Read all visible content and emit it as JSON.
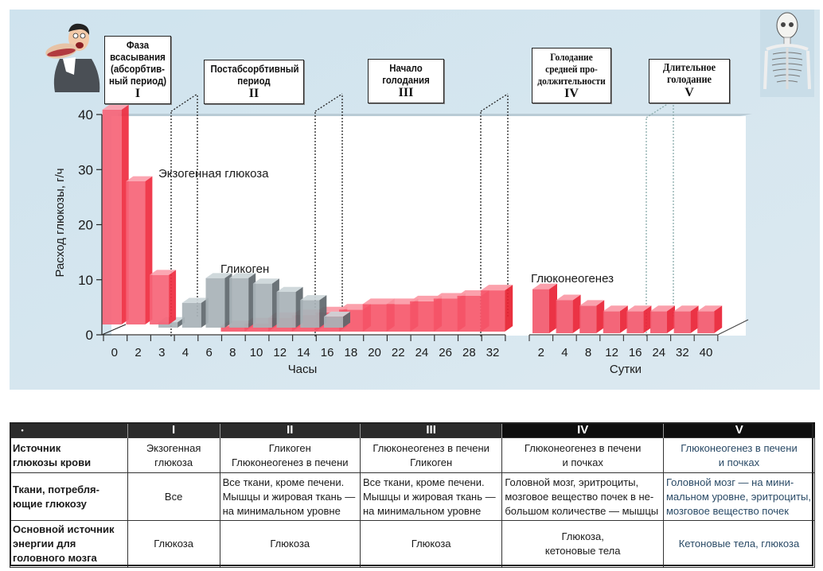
{
  "chart_data": {
    "type": "bar",
    "title": "",
    "ylabel": "Расход глюкозы, г/ч",
    "ylim": [
      0,
      40
    ],
    "yticks": [
      0,
      10,
      20,
      30,
      40
    ],
    "hours_axis": {
      "xlabel": "Часы",
      "categories": [
        "0",
        "2",
        "3",
        "4",
        "6",
        "8",
        "10",
        "12",
        "14",
        "16",
        "18",
        "20",
        "22",
        "24",
        "26",
        "28",
        "32"
      ]
    },
    "days_axis": {
      "xlabel": "Сутки",
      "categories": [
        "2",
        "4",
        "8",
        "12",
        "16",
        "24",
        "32",
        "40"
      ]
    },
    "series": [
      {
        "name": "Экзогенная глюкоза",
        "color": "#f0485e",
        "axis": "hours",
        "points": [
          {
            "x": "2",
            "y": 39
          },
          {
            "x": "3",
            "y": 26
          },
          {
            "x": "4",
            "y": 9
          }
        ]
      },
      {
        "name": "Гликоген",
        "color": "#9aa3a8",
        "axis": "hours",
        "points": [
          {
            "x": "4",
            "y": 1
          },
          {
            "x": "6",
            "y": 4.5
          },
          {
            "x": "8",
            "y": 9
          },
          {
            "x": "10",
            "y": 9
          },
          {
            "x": "12",
            "y": 8
          },
          {
            "x": "14",
            "y": 6.5
          },
          {
            "x": "16",
            "y": 5
          },
          {
            "x": "18",
            "y": 2
          }
        ]
      },
      {
        "name": "Глюконеогенез",
        "color": "#f0485e",
        "axis": "hours",
        "points": [
          {
            "x": "8",
            "y": 1
          },
          {
            "x": "10",
            "y": 1.5
          },
          {
            "x": "12",
            "y": 2.5
          },
          {
            "x": "14",
            "y": 3
          },
          {
            "x": "16",
            "y": 3.5
          },
          {
            "x": "18",
            "y": 4
          },
          {
            "x": "20",
            "y": 5
          },
          {
            "x": "22",
            "y": 5
          },
          {
            "x": "24",
            "y": 5.5
          },
          {
            "x": "26",
            "y": 6
          },
          {
            "x": "28",
            "y": 6.5
          },
          {
            "x": "32",
            "y": 7.5
          }
        ]
      },
      {
        "name": "Глюконеогенез",
        "color": "#f0485e",
        "axis": "days",
        "points": [
          {
            "x": "2",
            "y": 8
          },
          {
            "x": "4",
            "y": 6
          },
          {
            "x": "8",
            "y": 5
          },
          {
            "x": "12",
            "y": 4
          },
          {
            "x": "16",
            "y": 4
          },
          {
            "x": "24",
            "y": 4
          },
          {
            "x": "32",
            "y": 4
          },
          {
            "x": "40",
            "y": 4
          }
        ]
      }
    ],
    "annotations": [
      "Экзогенная глюкоза",
      "Гликоген",
      "Глюконеогенез"
    ],
    "grid": false,
    "legend": "none"
  },
  "phases": [
    {
      "title": "Фаза всасывания (абсорбтив-ный период)",
      "lines": [
        "Фаза",
        "всасывания",
        "(абсорбтив-",
        "ный период)"
      ],
      "numeral": "I"
    },
    {
      "title": "Постабсорбтивный период",
      "lines": [
        "Постабсорбтивный",
        "период"
      ],
      "numeral": "II"
    },
    {
      "title": "Начало голодания",
      "lines": [
        "Начало",
        "голодания"
      ],
      "numeral": "III"
    },
    {
      "title": "Голодание средней продолжительности",
      "lines": [
        "Голодание",
        "средней про-",
        "должительности"
      ],
      "numeral": "IV"
    },
    {
      "title": "Длительное голодание",
      "lines": [
        "Длительное",
        "голодание"
      ],
      "numeral": "V"
    }
  ],
  "illustrations": {
    "left": "eating-man-icon",
    "right": "skeleton-icon"
  },
  "table": {
    "header": [
      "•",
      "I",
      "II",
      "III",
      "IV",
      "V"
    ],
    "rows": [
      {
        "label": [
          "Источник",
          "глюкозы крови"
        ],
        "cells": [
          [
            "Экзогенная",
            "глюкоза"
          ],
          [
            "Гликоген",
            "Глюконеогенез в печени"
          ],
          [
            "Глюконеогенез в печени",
            "Гликоген"
          ],
          [
            "Глюконеогенез в печени",
            "и почках"
          ],
          [
            "Глюконеогенез в печени",
            "и почках"
          ]
        ]
      },
      {
        "label": [
          "Ткани, потребля-",
          "ющие глюкозу"
        ],
        "cells": [
          [
            "Все"
          ],
          [
            "Все ткани, кроме печени.",
            "Мышцы и жировая ткань —",
            "на минимальном уровне"
          ],
          [
            "Все ткани, кроме печени.",
            "Мышцы и жировая ткань —",
            "на минимальном уровне"
          ],
          [
            "Головной мозг, эритроциты,",
            "мозговое вещество почек в не-",
            "большом количестве — мышцы"
          ],
          [
            "Головной мозг — на мини-",
            "мальном уровне, эритроциты,",
            "мозговое вещество почек"
          ]
        ]
      },
      {
        "label": [
          "Основной источник",
          "энергии для",
          "головного мозга"
        ],
        "cells": [
          [
            "Глюкоза"
          ],
          [
            "Глюкоза"
          ],
          [
            "Глюкоза"
          ],
          [
            "Глюкоза,",
            "кетоновые тела"
          ],
          [
            "Кетоновые тела, глюкоза"
          ]
        ]
      }
    ]
  }
}
